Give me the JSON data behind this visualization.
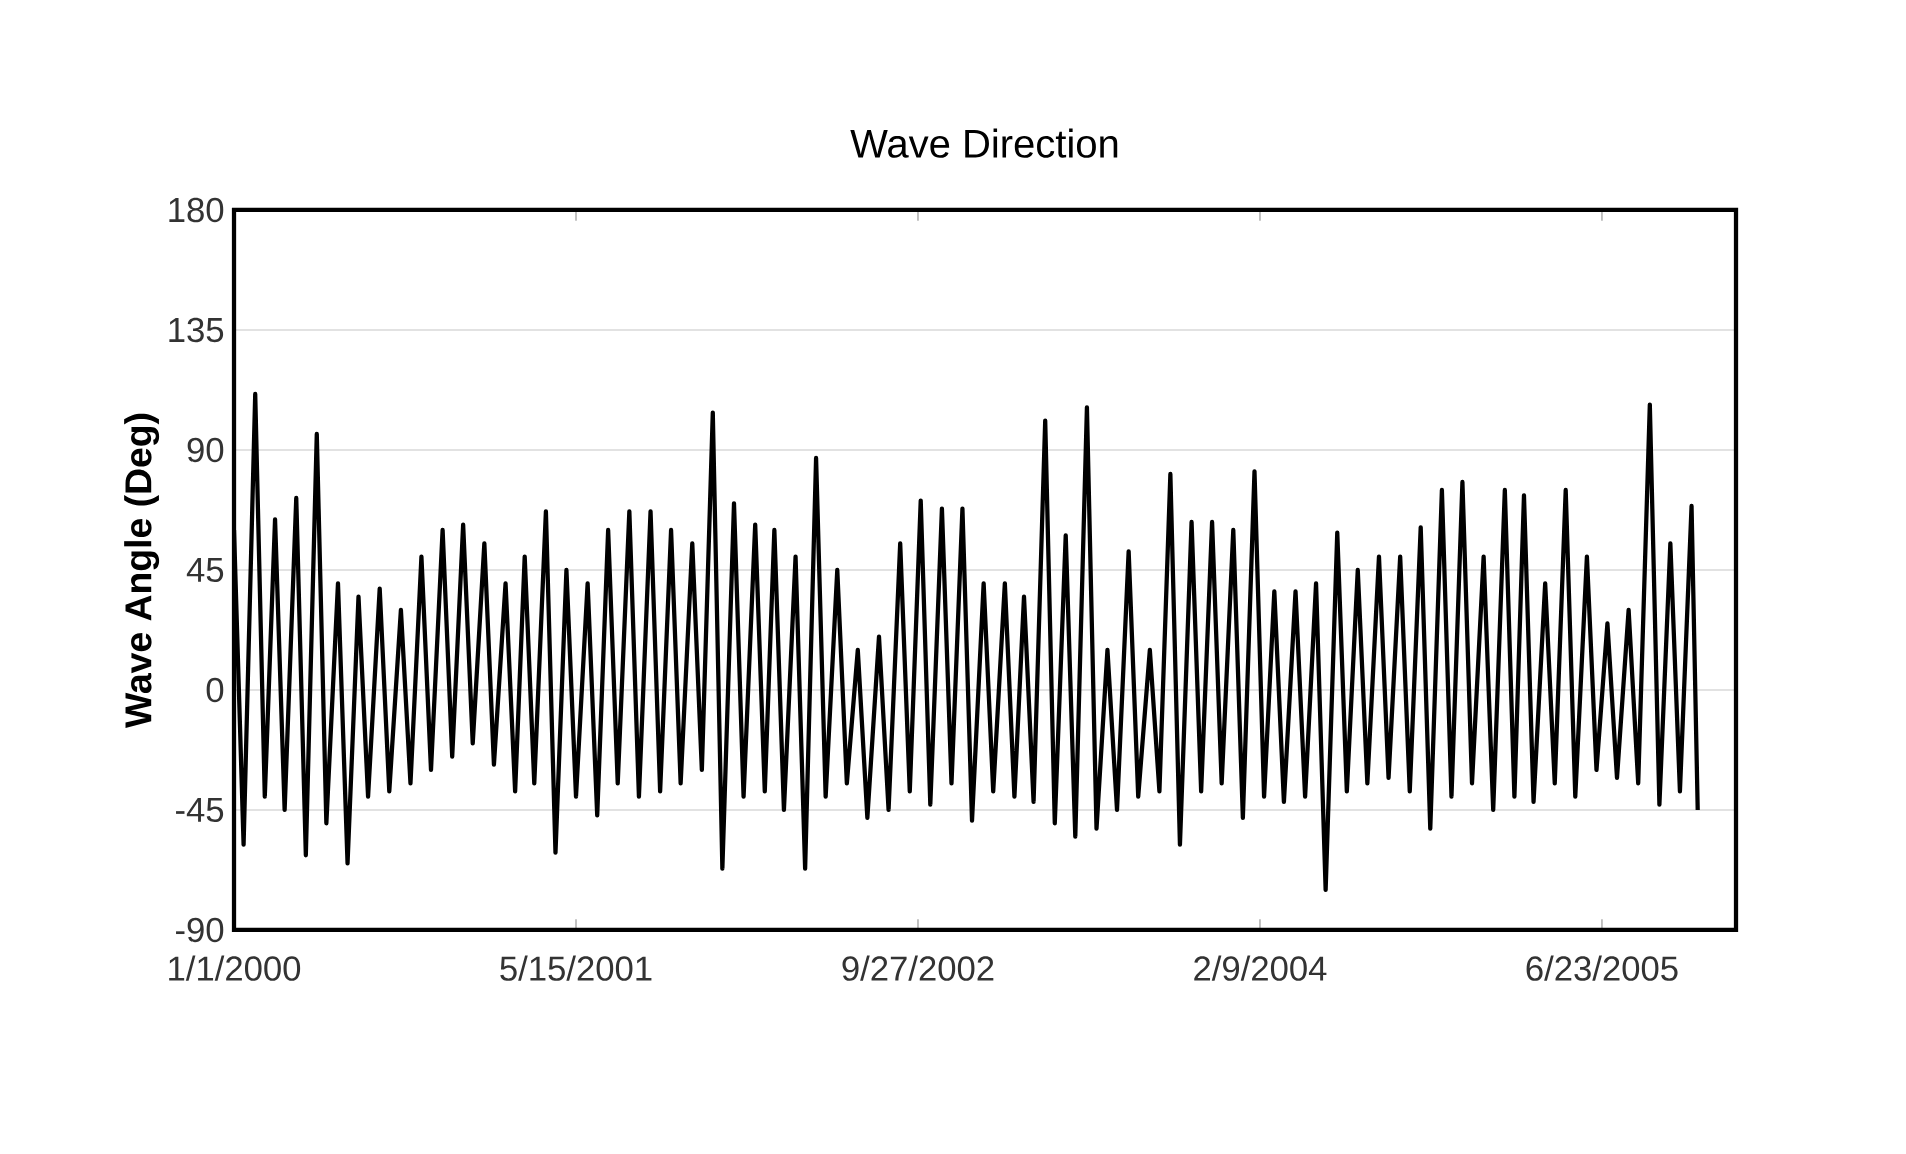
{
  "chart_data": {
    "type": "line",
    "title": "Wave Direction",
    "ylabel": "Wave Angle (Deg)",
    "series": [
      {
        "color": "#000000",
        "x": [
          "2000-01-01",
          "2000-01-15",
          "2000-02-01",
          "2000-02-15",
          "2000-03-01",
          "2000-03-15",
          "2000-04-01",
          "2000-04-15",
          "2000-05-01",
          "2000-05-15",
          "2000-06-01",
          "2000-06-15",
          "2000-07-01",
          "2000-07-15",
          "2000-08-01",
          "2000-08-15",
          "2000-09-01",
          "2000-09-15",
          "2000-10-01",
          "2000-10-15",
          "2000-11-01",
          "2000-11-15",
          "2000-12-01",
          "2000-12-15",
          "2001-01-01",
          "2001-01-15",
          "2001-02-01",
          "2001-02-15",
          "2001-03-01",
          "2001-03-15",
          "2001-04-01",
          "2001-04-15",
          "2001-05-01",
          "2001-05-15",
          "2001-06-01",
          "2001-06-15",
          "2001-07-01",
          "2001-07-15",
          "2001-08-01",
          "2001-08-15",
          "2001-09-01",
          "2001-09-15",
          "2001-10-01",
          "2001-10-15",
          "2001-11-01",
          "2001-11-15",
          "2001-12-01",
          "2001-12-15",
          "2002-01-01",
          "2002-01-15",
          "2002-02-01",
          "2002-02-15",
          "2002-03-01",
          "2002-03-15",
          "2002-04-01",
          "2002-04-15",
          "2002-05-01",
          "2002-05-15",
          "2002-06-01",
          "2002-06-15",
          "2002-07-01",
          "2002-07-15",
          "2002-08-01",
          "2002-08-15",
          "2002-09-01",
          "2002-09-15",
          "2002-10-01",
          "2002-10-15",
          "2002-11-01",
          "2002-11-15",
          "2002-12-01",
          "2002-12-15",
          "2003-01-01",
          "2003-01-15",
          "2003-02-01",
          "2003-02-15",
          "2003-03-01",
          "2003-03-15",
          "2003-04-01",
          "2003-04-15",
          "2003-05-01",
          "2003-05-15",
          "2003-06-01",
          "2003-06-15",
          "2003-07-01",
          "2003-07-15",
          "2003-08-01",
          "2003-08-15",
          "2003-09-01",
          "2003-09-15",
          "2003-10-01",
          "2003-10-15",
          "2003-11-01",
          "2003-11-15",
          "2003-12-01",
          "2003-12-15",
          "2004-01-01",
          "2004-01-15",
          "2004-02-01",
          "2004-02-15",
          "2004-03-01",
          "2004-03-15",
          "2004-04-01",
          "2004-04-15",
          "2004-05-01",
          "2004-05-15",
          "2004-06-01",
          "2004-06-15",
          "2004-07-01",
          "2004-07-15",
          "2004-08-01",
          "2004-08-15",
          "2004-09-01",
          "2004-09-15",
          "2004-10-01",
          "2004-10-15",
          "2004-11-01",
          "2004-11-15",
          "2004-12-01",
          "2004-12-15",
          "2005-01-01",
          "2005-01-15",
          "2005-02-01",
          "2005-02-15",
          "2005-03-01",
          "2005-03-15",
          "2005-04-01",
          "2005-04-15",
          "2005-05-01",
          "2005-05-15",
          "2005-06-01",
          "2005-06-15",
          "2005-07-01",
          "2005-07-15",
          "2005-08-01",
          "2005-08-15",
          "2005-09-01",
          "2005-09-15",
          "2005-10-01",
          "2005-10-15",
          "2005-11-01",
          "2005-11-10"
        ],
        "values": [
          60,
          -58,
          111,
          -40,
          64,
          -45,
          72,
          -62,
          96,
          -50,
          40,
          -65,
          35,
          -40,
          38,
          -38,
          30,
          -35,
          50,
          -30,
          60,
          -25,
          62,
          -20,
          55,
          -28,
          40,
          -38,
          50,
          -35,
          67,
          -61,
          45,
          -40,
          40,
          -47,
          60,
          -35,
          67,
          -40,
          67,
          -38,
          60,
          -35,
          55,
          -30,
          104,
          -67,
          70,
          -40,
          62,
          -38,
          60,
          -45,
          50,
          -67,
          87,
          -40,
          45,
          -35,
          15,
          -48,
          20,
          -45,
          55,
          -38,
          71,
          -43,
          68,
          -35,
          68,
          -49,
          40,
          -38,
          40,
          -40,
          35,
          -42,
          101,
          -50,
          58,
          -55,
          106,
          -52,
          15,
          -45,
          52,
          -40,
          15,
          -38,
          81,
          -58,
          63,
          -38,
          63,
          -35,
          60,
          -48,
          82,
          -40,
          37,
          -42,
          37,
          -40,
          40,
          -75,
          59,
          -38,
          45,
          -35,
          50,
          -33,
          50,
          -38,
          61,
          -52,
          75,
          -40,
          78,
          -35,
          50,
          -45,
          75,
          -40,
          73,
          -42,
          40,
          -35,
          75,
          -40,
          50,
          -30,
          25,
          -33,
          30,
          -35,
          107,
          -43,
          55,
          -38,
          69,
          -45
        ]
      }
    ],
    "xlim": [
      "2000-01-01",
      "2006-01-05"
    ],
    "xticks": [
      {
        "value": "2000-01-01",
        "label": "1/1/2000"
      },
      {
        "value": "2001-05-15",
        "label": "5/15/2001"
      },
      {
        "value": "2002-09-27",
        "label": "9/27/2002"
      },
      {
        "value": "2004-02-09",
        "label": "2/9/2004"
      },
      {
        "value": "2005-06-23",
        "label": "6/23/2005"
      }
    ],
    "ylim": [
      -90,
      180
    ],
    "yticks": [
      -90,
      -45,
      0,
      45,
      90,
      135,
      180
    ],
    "grid": "y",
    "marker": "none",
    "line_style": "solid",
    "legend": false
  }
}
